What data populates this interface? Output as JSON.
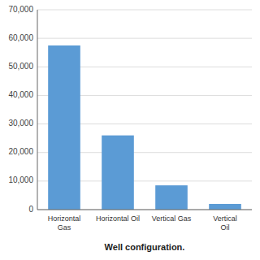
{
  "chart_data": {
    "type": "bar",
    "categories": [
      "Horizontal\nGas",
      "Horizontal Oil",
      "Vertical Gas",
      "Vertical\nOil"
    ],
    "values": [
      57500,
      26000,
      8500,
      2000
    ],
    "color": "#5B9BD5",
    "xlabel": "Well configuration.",
    "ylim": [
      0,
      70000
    ],
    "yticks": [
      0,
      {
        "value": 10000,
        "label": "10,000"
      },
      {
        "value": 20000,
        "label": "20,000"
      },
      {
        "value": 30000,
        "label": "30,000"
      },
      {
        "value": 40000,
        "label": "40,000"
      },
      {
        "value": 50000,
        "label": "50,000"
      },
      {
        "value": 60000,
        "label": "60,000"
      },
      {
        "value": 70000,
        "label": "70,000"
      }
    ],
    "grid": true
  }
}
